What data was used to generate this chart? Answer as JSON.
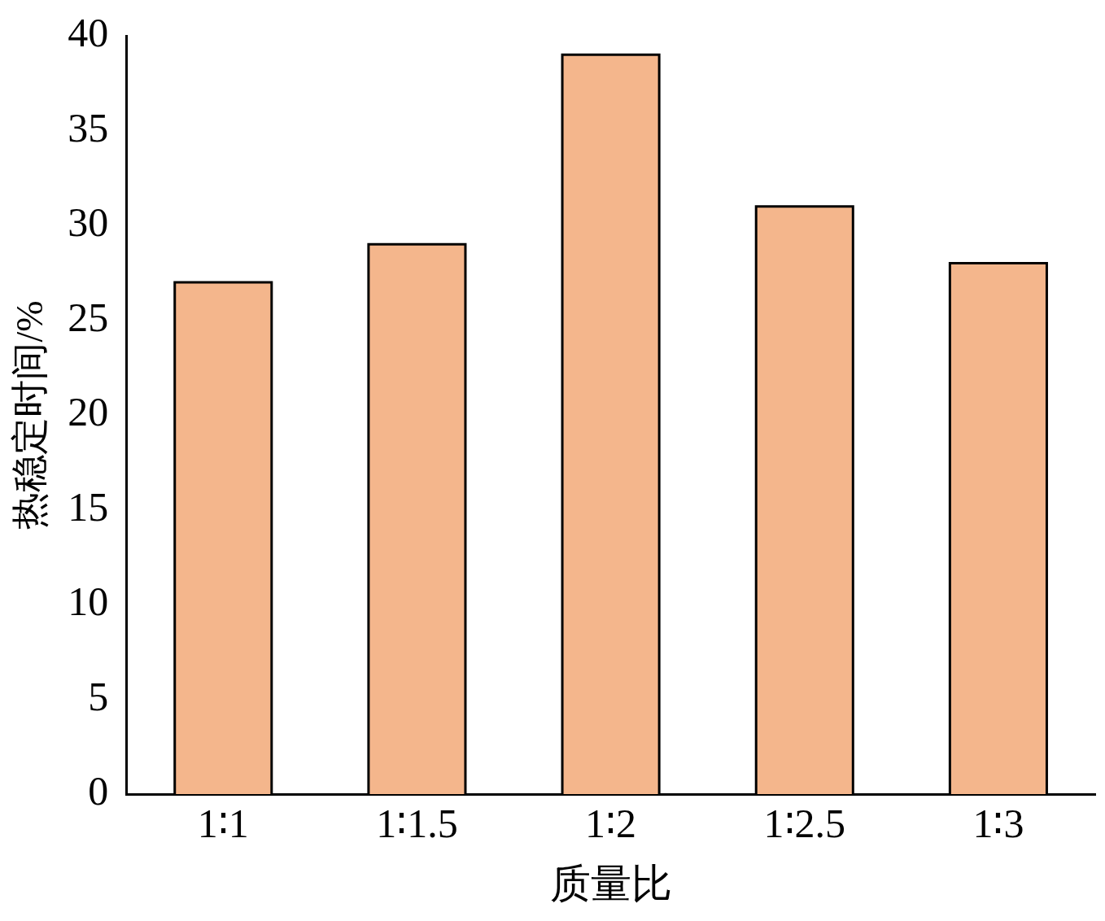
{
  "chart_data": {
    "type": "bar",
    "xlabel": "质量比",
    "ylabel": "热稳定时间/%",
    "categories": [
      "1∶1",
      "1∶1.5",
      "1∶2",
      "1∶2.5",
      "1∶3"
    ],
    "values": [
      27,
      29,
      39,
      31,
      28
    ],
    "color": "#f4b68c",
    "ylim": [
      0,
      40
    ],
    "yticks": [
      0,
      5,
      10,
      15,
      20,
      25,
      30,
      35,
      40
    ]
  }
}
